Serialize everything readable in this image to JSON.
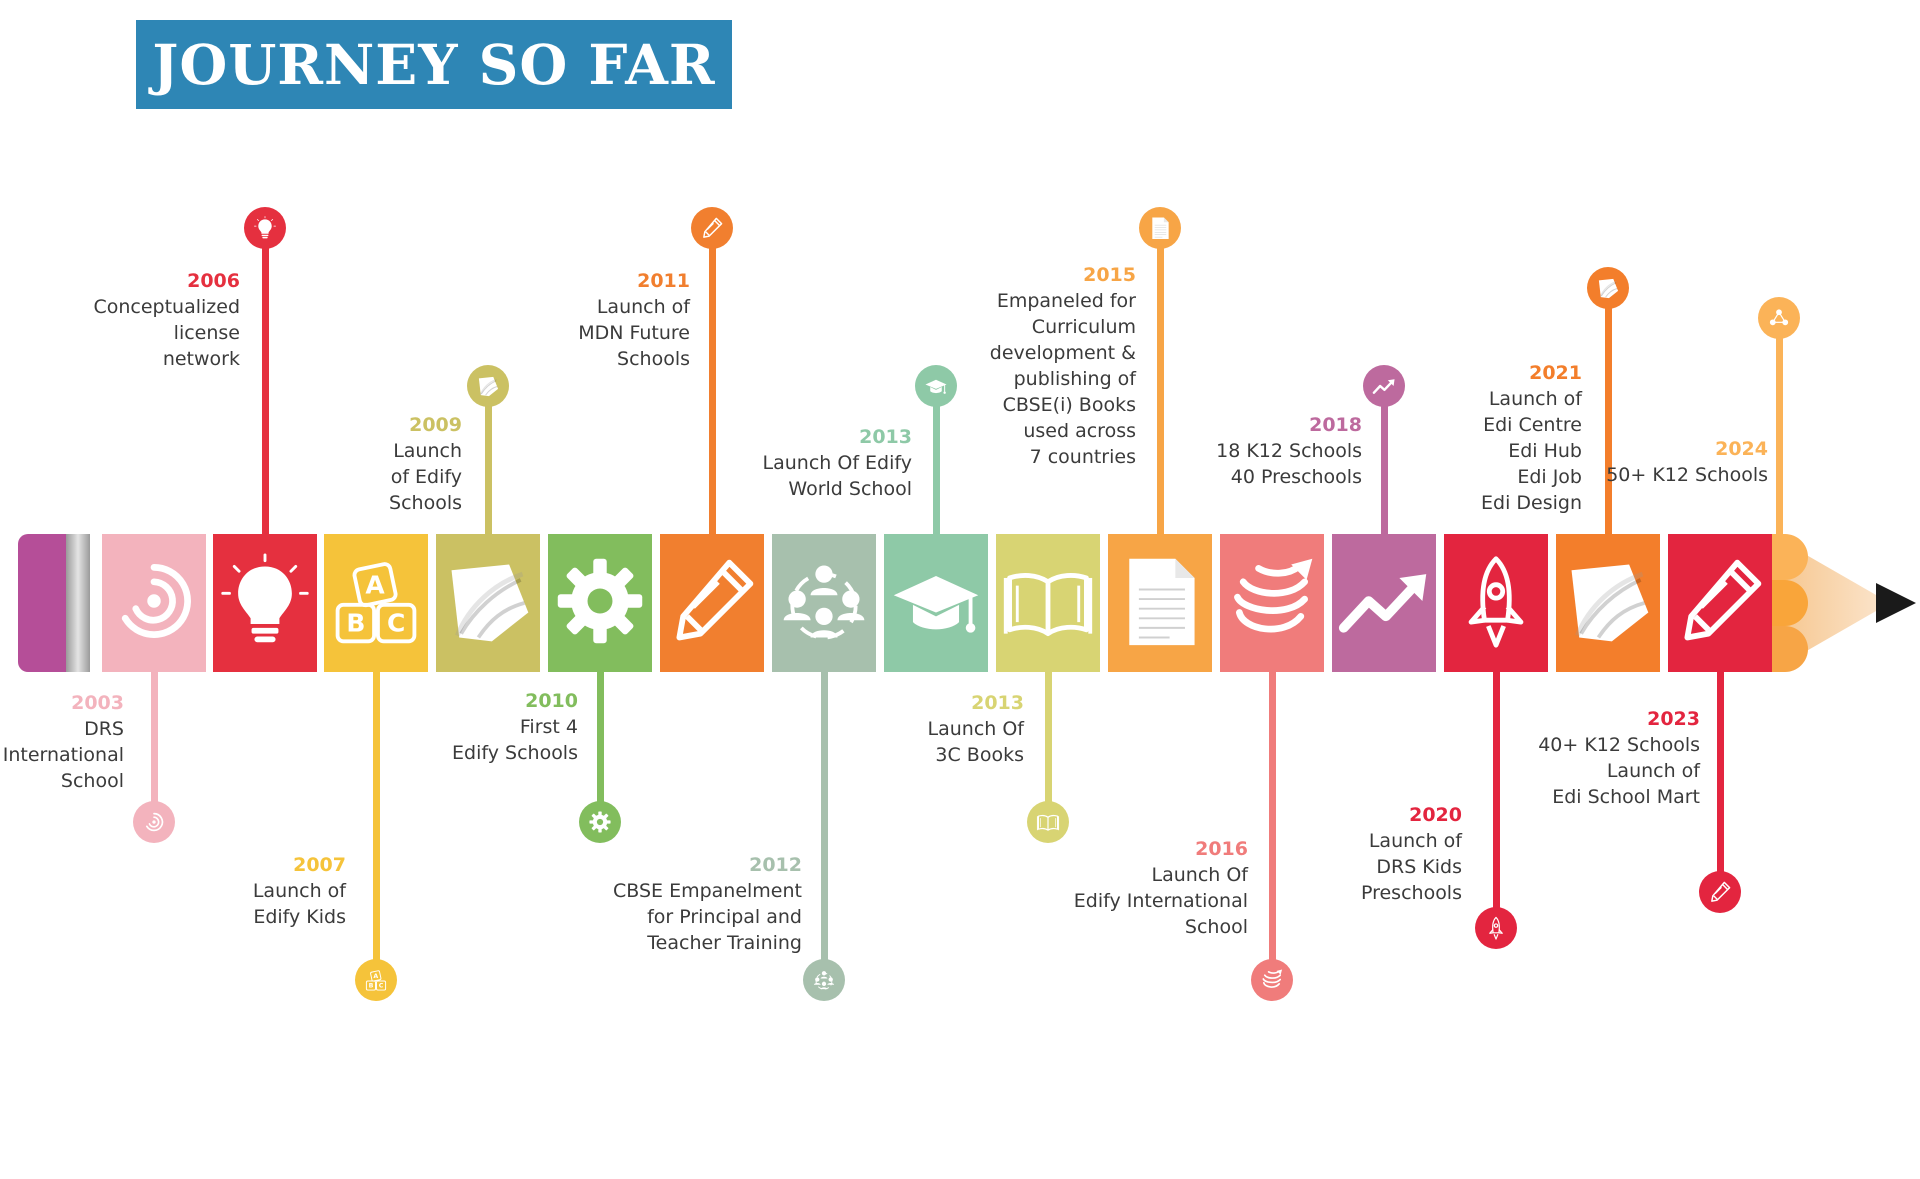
{
  "title": "JOURNEY SO FAR",
  "milestones": [
    {
      "year": "2003",
      "lines": [
        "DRS",
        "International",
        "School"
      ],
      "color": "#f3b3bd",
      "icon": "swirl-icon"
    },
    {
      "year": "2006",
      "lines": [
        "Conceptualized",
        "license",
        "network"
      ],
      "color": "#e5303f",
      "icon": "lightbulb-icon"
    },
    {
      "year": "2007",
      "lines": [
        "Launch of",
        "Edify Kids"
      ],
      "color": "#f5c33a",
      "icon": "abc-blocks-icon"
    },
    {
      "year": "2009",
      "lines": [
        "Launch",
        "of Edify",
        "Schools"
      ],
      "color": "#cbc163",
      "icon": "edify-logo-icon"
    },
    {
      "year": "2010",
      "lines": [
        "First 4",
        "Edify Schools"
      ],
      "color": "#82bd5d",
      "icon": "gear-icon"
    },
    {
      "year": "2011",
      "lines": [
        "Launch of",
        "MDN Future",
        "Schools"
      ],
      "color": "#f17f2f",
      "icon": "pencil-icon"
    },
    {
      "year": "2012",
      "lines": [
        "CBSE Empanelment",
        "for Principal and",
        "Teacher Training"
      ],
      "color": "#a7c0ad",
      "icon": "group-icon"
    },
    {
      "year": "2013",
      "lines": [
        "Launch Of Edify",
        "World School"
      ],
      "color": "#8ec9a7",
      "icon": "graduation-cap-icon"
    },
    {
      "year": "2013",
      "lines": [
        "Launch Of",
        "3C Books"
      ],
      "color": "#d8d473",
      "icon": "open-book-icon"
    },
    {
      "year": "2015",
      "lines": [
        "Empaneled for",
        "Curriculum",
        "development &",
        "publishing of",
        "CBSE(i) Books",
        "used across",
        "7 countries"
      ],
      "color": "#f7a546",
      "icon": "document-icon"
    },
    {
      "year": "2016",
      "lines": [
        "Launch Of",
        "Edify International",
        "School"
      ],
      "color": "#f07c7b",
      "icon": "globe-swirl-icon"
    },
    {
      "year": "2018",
      "lines": [
        "18 K12 Schools",
        "40 Preschools"
      ],
      "color": "#bd6a9e",
      "icon": "trend-up-icon"
    },
    {
      "year": "2020",
      "lines": [
        "Launch of",
        "DRS Kids",
        "Preschools"
      ],
      "color": "#e3253f",
      "icon": "rocket-icon"
    },
    {
      "year": "2021",
      "lines": [
        "Launch of",
        "Edi Centre",
        "Edi Hub",
        "Edi Job",
        "Edi Design"
      ],
      "color": "#f37e2b",
      "icon": "edify-logo-icon"
    },
    {
      "year": "2023",
      "lines": [
        "40+ K12 Schools",
        "Launch of",
        "Edi School Mart"
      ],
      "color": "#e3253f",
      "icon": "pencil-icon"
    },
    {
      "year": "2024",
      "lines": [
        "50+ K12 Schools"
      ],
      "color": "#fbb358",
      "icon": "network-icon"
    }
  ]
}
